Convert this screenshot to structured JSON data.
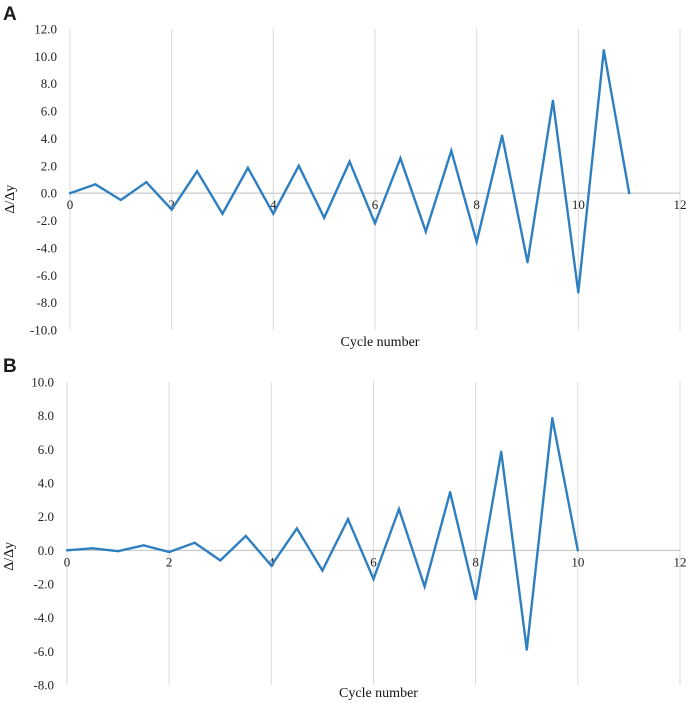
{
  "chart_data": [
    {
      "type": "line",
      "panel_label": "A",
      "xlabel": "Cycle number",
      "ylabel": "Δ/Δy",
      "xlim": [
        0,
        12
      ],
      "ylim": [
        -10,
        12
      ],
      "xticks": [
        0,
        2,
        4,
        6,
        8,
        10,
        12
      ],
      "xtick_labels": [
        "0",
        "2",
        "4",
        "6",
        "8",
        "10",
        "12"
      ],
      "yticks": [
        -10,
        -8,
        -6,
        -4,
        -2,
        0,
        2,
        4,
        6,
        8,
        10,
        12
      ],
      "ytick_labels": [
        "-10.0",
        "-8.0",
        "-6.0",
        "-4.0",
        "-2.0",
        "0.0",
        "2.0",
        "4.0",
        "6.0",
        "8.0",
        "10.0",
        "12.0"
      ],
      "grid": "vertical",
      "legend": "none",
      "color": "#2e7fc2",
      "series": [
        {
          "x": [
            0,
            0.5,
            1,
            1.5,
            2,
            2.5,
            3,
            3.5,
            4,
            4.5,
            5,
            5.5,
            6,
            6.5,
            7,
            7.5,
            8,
            8.5,
            9,
            9.5,
            10,
            10.5,
            11
          ],
          "values": [
            0,
            0.65,
            -0.5,
            0.8,
            -1.2,
            1.6,
            -1.5,
            1.85,
            -1.5,
            2.0,
            -1.8,
            2.3,
            -2.2,
            2.55,
            -2.8,
            3.1,
            -3.55,
            4.2,
            -5.05,
            6.75,
            -7.25,
            10.45,
            0
          ]
        }
      ]
    },
    {
      "type": "line",
      "panel_label": "B",
      "xlabel": "Cycle number",
      "ylabel": "Δ/Δy",
      "xlim": [
        0,
        12
      ],
      "ylim": [
        -8,
        10
      ],
      "xticks": [
        0,
        2,
        4,
        6,
        8,
        10,
        12
      ],
      "xtick_labels": [
        "0",
        "2",
        "4",
        "6",
        "8",
        "10",
        "12"
      ],
      "yticks": [
        -8,
        -6,
        -4,
        -2,
        0,
        2,
        4,
        6,
        8,
        10
      ],
      "ytick_labels": [
        "-8.0",
        "-6.0",
        "-4.0",
        "-2.0",
        "0.0",
        "2.0",
        "4.0",
        "6.0",
        "8.0",
        "10.0"
      ],
      "grid": "vertical",
      "legend": "none",
      "color": "#2e7fc2",
      "series": [
        {
          "x": [
            0,
            0.5,
            1,
            1.5,
            2,
            2.5,
            3,
            3.5,
            4,
            4.5,
            5,
            5.5,
            6,
            6.5,
            7,
            7.5,
            8,
            8.5,
            9,
            9.5,
            10
          ],
          "values": [
            0,
            0.12,
            -0.05,
            0.3,
            -0.1,
            0.45,
            -0.6,
            0.85,
            -0.9,
            1.3,
            -1.2,
            1.85,
            -1.7,
            2.45,
            -2.15,
            3.45,
            -2.9,
            5.85,
            -5.9,
            7.85,
            0
          ]
        }
      ]
    }
  ]
}
